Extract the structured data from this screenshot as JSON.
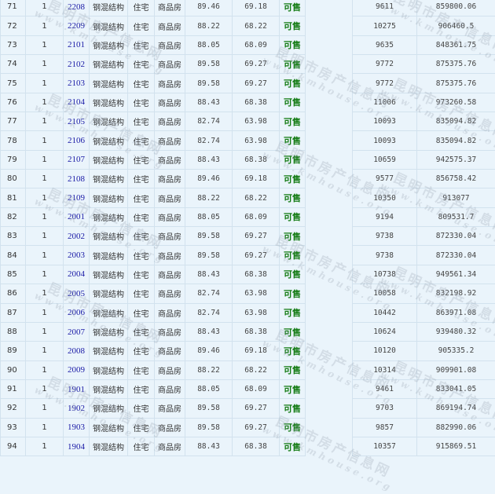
{
  "table": {
    "rows": [
      {
        "no": "71",
        "bldg": "1",
        "room": "2208",
        "structure": "钢混结构",
        "use": "住宅",
        "type": "商品房",
        "area": "89.46",
        "inner_area": "69.18",
        "status": "可售",
        "unit_price": "9611",
        "total": "859800.06"
      },
      {
        "no": "72",
        "bldg": "1",
        "room": "2209",
        "structure": "钢混结构",
        "use": "住宅",
        "type": "商品房",
        "area": "88.22",
        "inner_area": "68.22",
        "status": "可售",
        "unit_price": "10275",
        "total": "906460.5"
      },
      {
        "no": "73",
        "bldg": "1",
        "room": "2101",
        "structure": "钢混结构",
        "use": "住宅",
        "type": "商品房",
        "area": "88.05",
        "inner_area": "68.09",
        "status": "可售",
        "unit_price": "9635",
        "total": "848361.75"
      },
      {
        "no": "74",
        "bldg": "1",
        "room": "2102",
        "structure": "钢混结构",
        "use": "住宅",
        "type": "商品房",
        "area": "89.58",
        "inner_area": "69.27",
        "status": "可售",
        "unit_price": "9772",
        "total": "875375.76"
      },
      {
        "no": "75",
        "bldg": "1",
        "room": "2103",
        "structure": "钢混结构",
        "use": "住宅",
        "type": "商品房",
        "area": "89.58",
        "inner_area": "69.27",
        "status": "可售",
        "unit_price": "9772",
        "total": "875375.76"
      },
      {
        "no": "76",
        "bldg": "1",
        "room": "2104",
        "structure": "钢混结构",
        "use": "住宅",
        "type": "商品房",
        "area": "88.43",
        "inner_area": "68.38",
        "status": "可售",
        "unit_price": "11006",
        "total": "973260.58"
      },
      {
        "no": "77",
        "bldg": "1",
        "room": "2105",
        "structure": "钢混结构",
        "use": "住宅",
        "type": "商品房",
        "area": "82.74",
        "inner_area": "63.98",
        "status": "可售",
        "unit_price": "10093",
        "total": "835094.82"
      },
      {
        "no": "78",
        "bldg": "1",
        "room": "2106",
        "structure": "钢混结构",
        "use": "住宅",
        "type": "商品房",
        "area": "82.74",
        "inner_area": "63.98",
        "status": "可售",
        "unit_price": "10093",
        "total": "835094.82"
      },
      {
        "no": "79",
        "bldg": "1",
        "room": "2107",
        "structure": "钢混结构",
        "use": "住宅",
        "type": "商品房",
        "area": "88.43",
        "inner_area": "68.38",
        "status": "可售",
        "unit_price": "10659",
        "total": "942575.37"
      },
      {
        "no": "80",
        "bldg": "1",
        "room": "2108",
        "structure": "钢混结构",
        "use": "住宅",
        "type": "商品房",
        "area": "89.46",
        "inner_area": "69.18",
        "status": "可售",
        "unit_price": "9577",
        "total": "856758.42"
      },
      {
        "no": "81",
        "bldg": "1",
        "room": "2109",
        "structure": "钢混结构",
        "use": "住宅",
        "type": "商品房",
        "area": "88.22",
        "inner_area": "68.22",
        "status": "可售",
        "unit_price": "10350",
        "total": "913077"
      },
      {
        "no": "82",
        "bldg": "1",
        "room": "2001",
        "structure": "钢混结构",
        "use": "住宅",
        "type": "商品房",
        "area": "88.05",
        "inner_area": "68.09",
        "status": "可售",
        "unit_price": "9194",
        "total": "809531.7"
      },
      {
        "no": "83",
        "bldg": "1",
        "room": "2002",
        "structure": "钢混结构",
        "use": "住宅",
        "type": "商品房",
        "area": "89.58",
        "inner_area": "69.27",
        "status": "可售",
        "unit_price": "9738",
        "total": "872330.04"
      },
      {
        "no": "84",
        "bldg": "1",
        "room": "2003",
        "structure": "钢混结构",
        "use": "住宅",
        "type": "商品房",
        "area": "89.58",
        "inner_area": "69.27",
        "status": "可售",
        "unit_price": "9738",
        "total": "872330.04"
      },
      {
        "no": "85",
        "bldg": "1",
        "room": "2004",
        "structure": "钢混结构",
        "use": "住宅",
        "type": "商品房",
        "area": "88.43",
        "inner_area": "68.38",
        "status": "可售",
        "unit_price": "10738",
        "total": "949561.34"
      },
      {
        "no": "86",
        "bldg": "1",
        "room": "2005",
        "structure": "钢混结构",
        "use": "住宅",
        "type": "商品房",
        "area": "82.74",
        "inner_area": "63.98",
        "status": "可售",
        "unit_price": "10058",
        "total": "832198.92"
      },
      {
        "no": "87",
        "bldg": "1",
        "room": "2006",
        "structure": "钢混结构",
        "use": "住宅",
        "type": "商品房",
        "area": "82.74",
        "inner_area": "63.98",
        "status": "可售",
        "unit_price": "10442",
        "total": "863971.08"
      },
      {
        "no": "88",
        "bldg": "1",
        "room": "2007",
        "structure": "钢混结构",
        "use": "住宅",
        "type": "商品房",
        "area": "88.43",
        "inner_area": "68.38",
        "status": "可售",
        "unit_price": "10624",
        "total": "939480.32"
      },
      {
        "no": "89",
        "bldg": "1",
        "room": "2008",
        "structure": "钢混结构",
        "use": "住宅",
        "type": "商品房",
        "area": "89.46",
        "inner_area": "69.18",
        "status": "可售",
        "unit_price": "10120",
        "total": "905335.2"
      },
      {
        "no": "90",
        "bldg": "1",
        "room": "2009",
        "structure": "钢混结构",
        "use": "住宅",
        "type": "商品房",
        "area": "88.22",
        "inner_area": "68.22",
        "status": "可售",
        "unit_price": "10314",
        "total": "909901.08"
      },
      {
        "no": "91",
        "bldg": "1",
        "room": "1901",
        "structure": "钢混结构",
        "use": "住宅",
        "type": "商品房",
        "area": "88.05",
        "inner_area": "68.09",
        "status": "可售",
        "unit_price": "9461",
        "total": "833041.05"
      },
      {
        "no": "92",
        "bldg": "1",
        "room": "1902",
        "structure": "钢混结构",
        "use": "住宅",
        "type": "商品房",
        "area": "89.58",
        "inner_area": "69.27",
        "status": "可售",
        "unit_price": "9703",
        "total": "869194.74"
      },
      {
        "no": "93",
        "bldg": "1",
        "room": "1903",
        "structure": "钢混结构",
        "use": "住宅",
        "type": "商品房",
        "area": "89.58",
        "inner_area": "69.27",
        "status": "可售",
        "unit_price": "9857",
        "total": "882990.06"
      },
      {
        "no": "94",
        "bldg": "1",
        "room": "1904",
        "structure": "钢混结构",
        "use": "住宅",
        "type": "商品房",
        "area": "88.43",
        "inner_area": "68.38",
        "status": "可售",
        "unit_price": "10357",
        "total": "915869.51"
      }
    ]
  },
  "colors": {
    "background": "#eaf4fb",
    "border": "#d2e2ee",
    "room_link": "#1a1aa6",
    "status_available": "#117a11"
  },
  "watermark": {
    "cn": "昆明市房产信息网",
    "en": "www.kmhouse.org"
  }
}
